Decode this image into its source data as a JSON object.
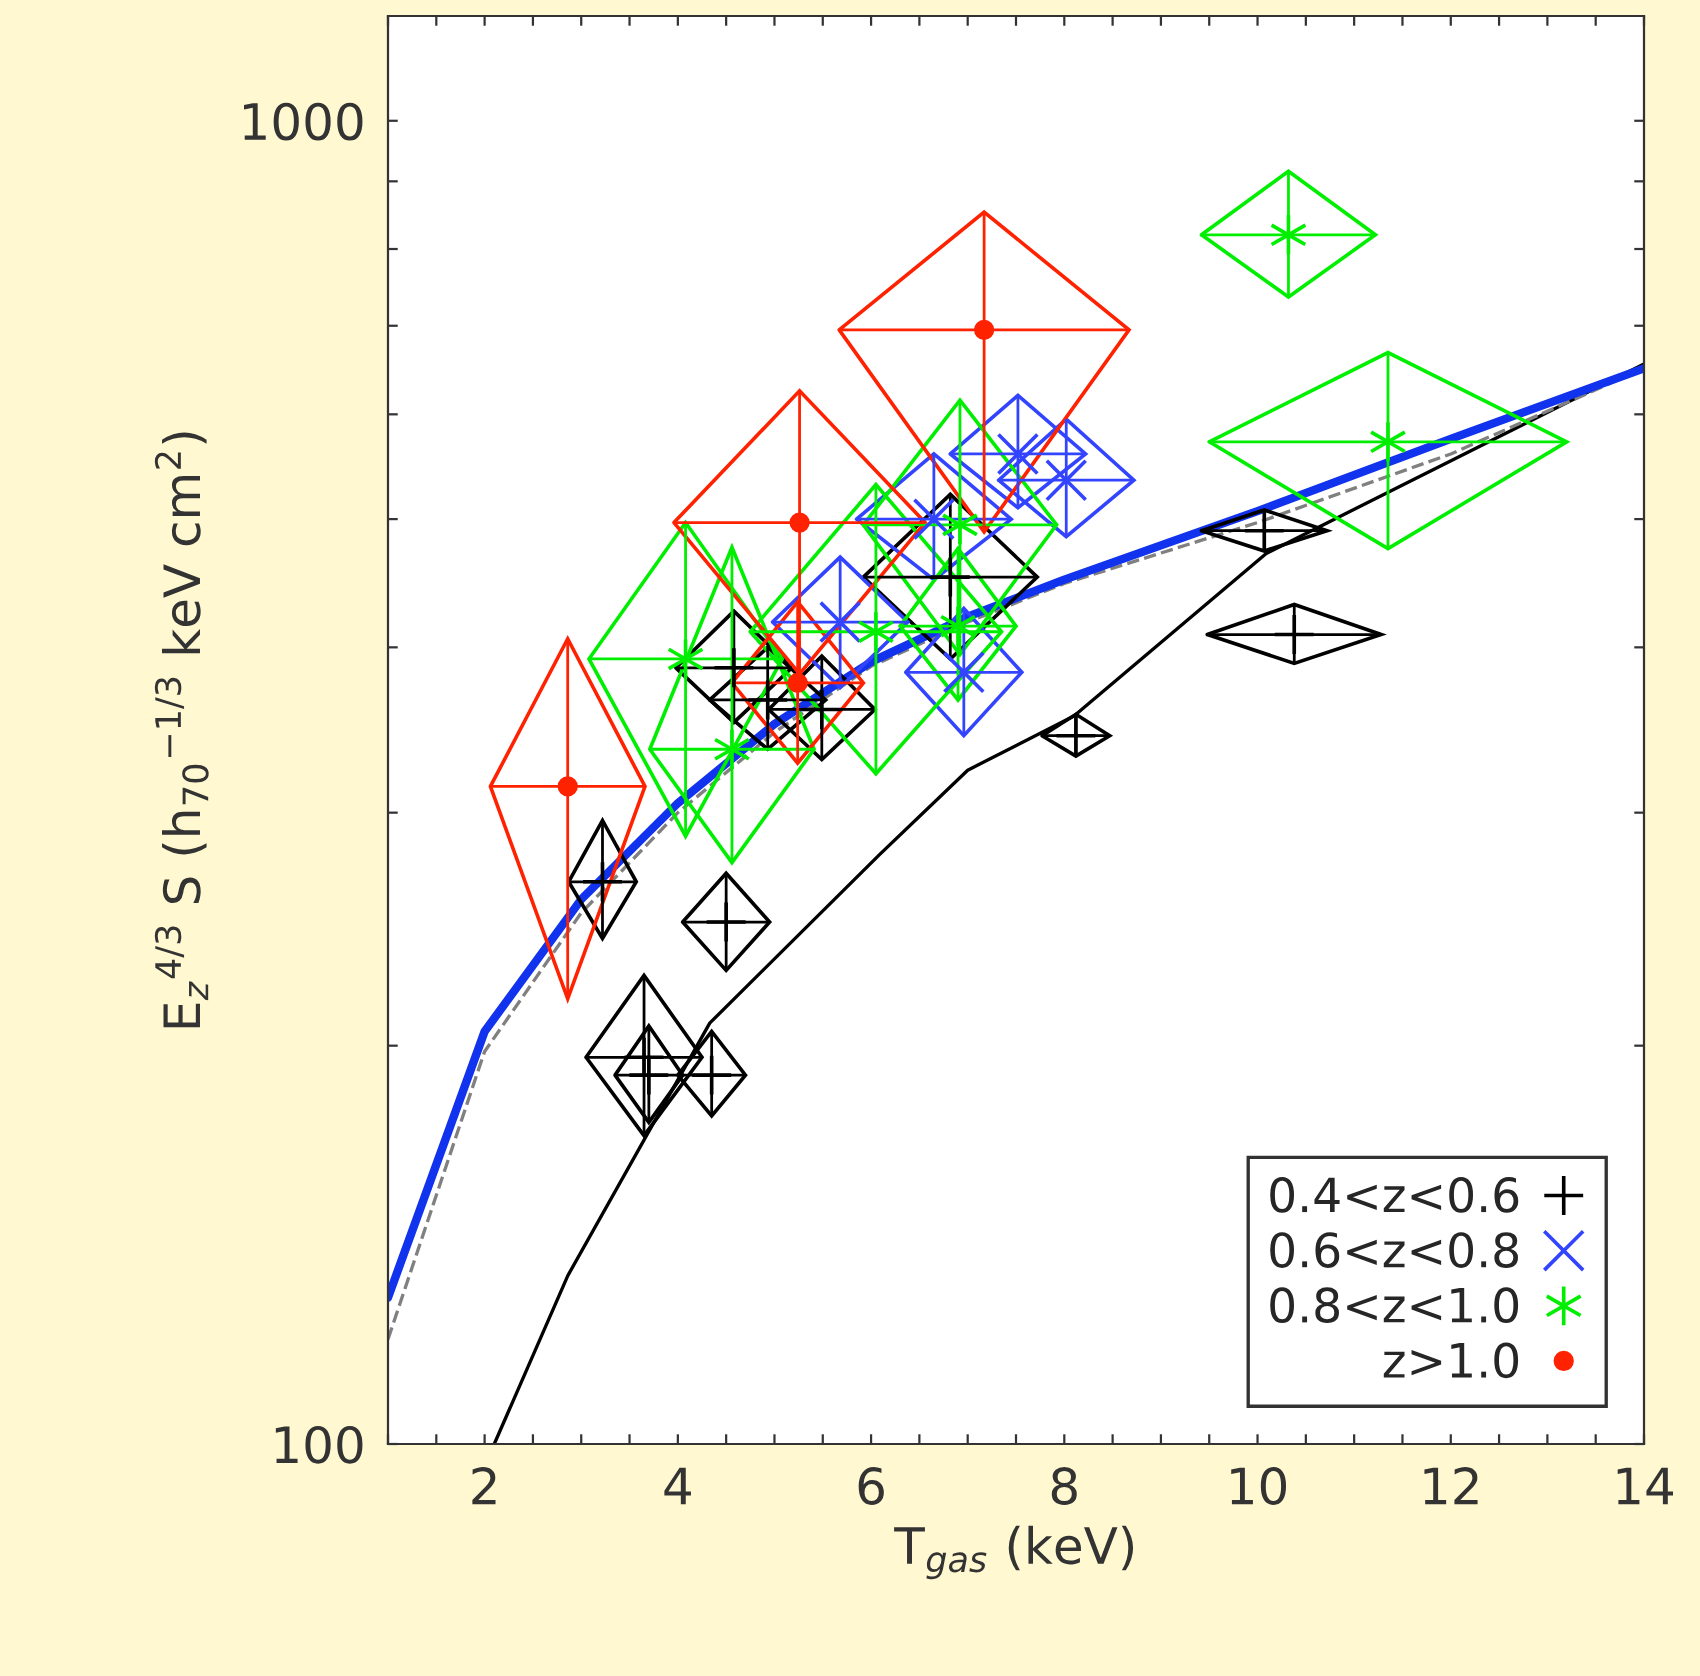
{
  "chart_data": {
    "type": "scatter",
    "xlabel": "T$_{gas}$ (keV)",
    "ylabel": "E$_{z}$$^{4/3}$ S (h$_{70}$$^{−1/3}$ keV cm$^{2}$)",
    "log": "y",
    "xlim": [
      1,
      14
    ],
    "ylim": [
      100,
      1200
    ],
    "xticks": [
      {
        "value": 1,
        "label": null
      },
      {
        "value": 1.5,
        "label": null
      },
      2,
      {
        "value": 2.5,
        "label": null
      },
      {
        "value": 3,
        "label": null
      },
      {
        "value": 3.5,
        "label": null
      },
      4,
      {
        "value": 4.5,
        "label": null
      },
      {
        "value": 5,
        "label": null
      },
      {
        "value": 5.5,
        "label": null
      },
      6,
      {
        "value": 6.5,
        "label": null
      },
      {
        "value": 7,
        "label": null
      },
      {
        "value": 7.5,
        "label": null
      },
      8,
      {
        "value": 8.5,
        "label": null
      },
      {
        "value": 9,
        "label": null
      },
      {
        "value": 9.5,
        "label": null
      },
      10,
      {
        "value": 10.5,
        "label": null
      },
      {
        "value": 11,
        "label": null
      },
      {
        "value": 11.5,
        "label": null
      },
      12,
      {
        "value": 12.5,
        "label": null
      },
      {
        "value": 13,
        "label": null
      },
      {
        "value": 13.5,
        "label": null
      },
      14
    ],
    "yticks": [
      100,
      {
        "value": 200,
        "label": null
      },
      {
        "value": 300,
        "label": null
      },
      {
        "value": 400,
        "label": null
      },
      {
        "value": 500,
        "label": null
      },
      {
        "value": 600,
        "label": null
      },
      {
        "value": 700,
        "label": null
      },
      {
        "value": 800,
        "label": null
      },
      {
        "value": 900,
        "label": null
      },
      1000
    ],
    "grid": false,
    "legend": "bottom right",
    "series": [
      {
        "type": "line",
        "color": "#000000",
        "line_style": "solid",
        "marker": "none",
        "x": [
          2.1,
          2.86,
          4.33,
          6.09,
          7.0,
          8.1,
          10.09,
          14
        ],
        "values": [
          100,
          134,
          208,
          279,
          323,
          355,
          471,
          655
        ]
      },
      {
        "type": "line",
        "color": "#808080",
        "line_style": "dashed",
        "marker": "none",
        "x": [
          1,
          2,
          3,
          4,
          5,
          6,
          7,
          8,
          10,
          12,
          14
        ],
        "values": [
          120,
          198,
          252,
          300,
          345,
          387,
          418,
          447,
          497,
          560,
          650
        ]
      },
      {
        "type": "line",
        "color": "#1133ee",
        "line_style": "solid",
        "marker": "none",
        "x": [
          1,
          2,
          3,
          4,
          5,
          6,
          7,
          8,
          10,
          12,
          14
        ],
        "values": [
          129,
          205,
          258,
          305,
          350,
          390,
          422,
          450,
          507,
          575,
          650
        ]
      },
      {
        "name": "0.4<z<0.6",
        "color": "#000000",
        "marker": "cross",
        "x": [
          3.22,
          4.5,
          3.65,
          3.7,
          4.35,
          4.58,
          4.93,
          5.49,
          6.82,
          10.07,
          10.38,
          8.12
        ],
        "values": [
          266,
          248,
          196,
          190,
          190,
          386,
          365,
          359,
          452,
          490,
          409,
          343
        ],
        "xerrors": [
          0.35,
          0.45,
          0.6,
          0.35,
          0.35,
          0.6,
          0.6,
          0.55,
          0.9,
          0.65,
          0.9,
          0.35
        ],
        "errors": [
          [
            241,
            296
          ],
          [
            228,
            270
          ],
          [
            171,
            226
          ],
          [
            175,
            207
          ],
          [
            177,
            205
          ],
          [
            351,
            426
          ],
          [
            335,
            400
          ],
          [
            329,
            394
          ],
          [
            392,
            522
          ],
          [
            473,
            508
          ],
          [
            389,
            431
          ],
          [
            331,
            356
          ]
        ]
      },
      {
        "name": "0.6<z<0.8",
        "color": "#3344ff",
        "marker": "x",
        "x": [
          7.52,
          8.02,
          6.96,
          6.65,
          5.68
        ],
        "values": [
          560,
          535,
          383,
          500,
          418
        ],
        "xerrors": [
          0.7,
          0.7,
          0.6,
          0.8,
          0.7
        ],
        "errors": [
          [
            510,
            620
          ],
          [
            485,
            595
          ],
          [
            343,
            428
          ],
          [
            450,
            560
          ],
          [
            373,
            468
          ]
        ]
      },
      {
        "name": "0.8<z<1.0",
        "color": "#00ee00",
        "x": [
          4.08,
          4.56,
          6.05,
          6.92,
          6.9,
          10.32,
          11.35
        ],
        "values": [
          392,
          335,
          411,
          495,
          415,
          820,
          572
        ],
        "xerrors": [
          1.0,
          0.85,
          1.3,
          1.0,
          0.6,
          0.9,
          1.85
        ],
        "errors": [
          [
            288,
            497
          ],
          [
            275,
            476
          ],
          [
            321,
            531
          ],
          [
            395,
            615
          ],
          [
            365,
            475
          ],
          [
            736,
            916
          ],
          [
            475,
            668
          ]
        ]
      },
      {
        "name": "z>1.0",
        "color": "#ff2200",
        "marker": "circle",
        "x": [
          2.86,
          5.26,
          5.24,
          7.17
        ],
        "values": [
          314,
          497,
          376,
          695
        ],
        "xerrors": [
          0.8,
          1.3,
          0.68,
          1.5
        ],
        "errors": [
          [
            217,
            406
          ],
          [
            382,
            625
          ],
          [
            327,
            433
          ],
          [
            489,
            853
          ]
        ]
      }
    ]
  }
}
